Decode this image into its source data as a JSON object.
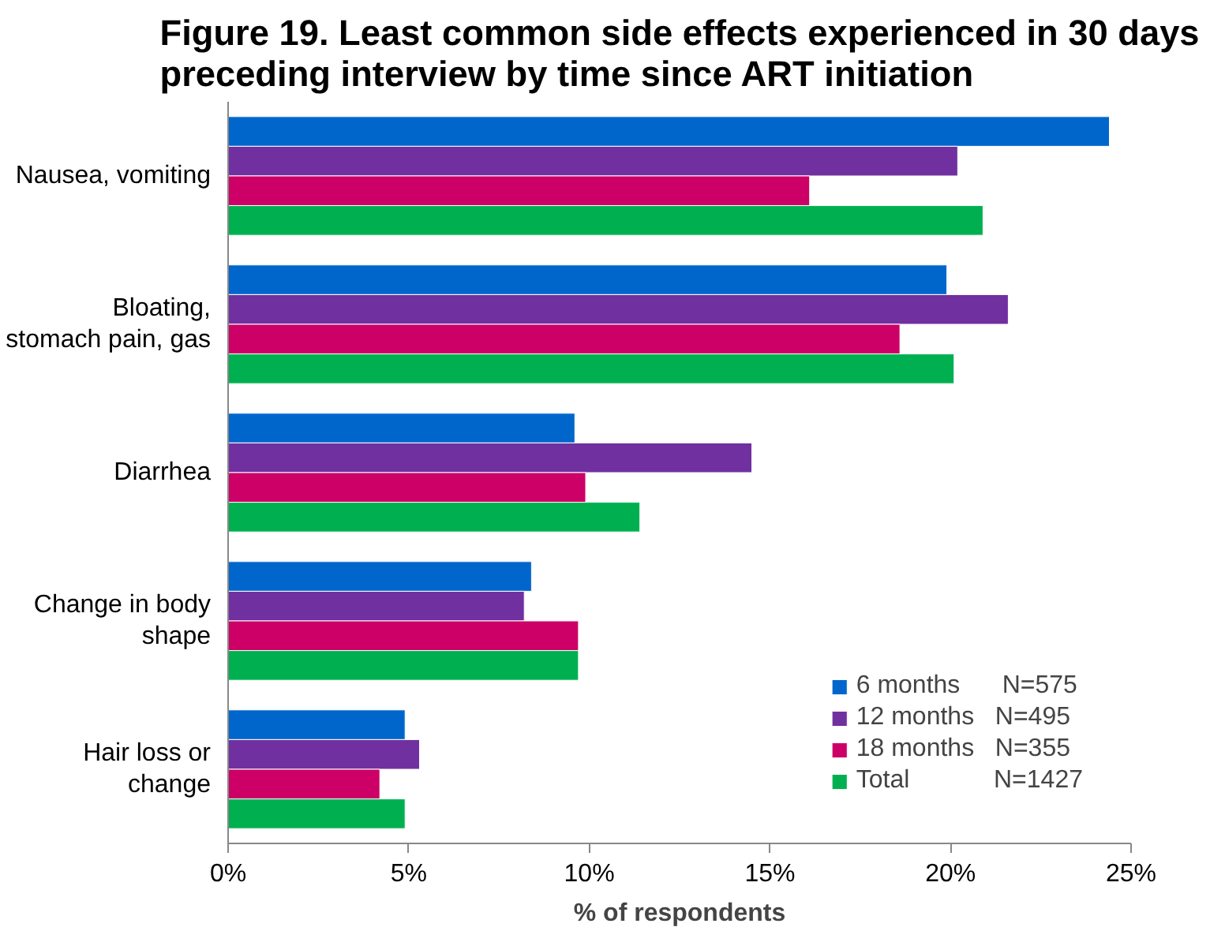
{
  "chart_data": {
    "type": "bar",
    "orientation": "horizontal",
    "title": "Figure 19. Least common side effects experienced in 30 days\npreceding interview by time since ART initiation",
    "xlabel": "% of respondents",
    "categories": [
      "Nausea, vomiting",
      "Bloating,\nstomach pain, gas",
      "Diarrhea",
      "Change in body\nshape",
      "Hair loss or\nchange"
    ],
    "series": [
      {
        "name": "6 months      N=575",
        "color": "#0066cc",
        "values": [
          24.4,
          19.9,
          9.6,
          8.4,
          4.9
        ]
      },
      {
        "name": "12 months   N=495",
        "color": "#7030a0",
        "values": [
          20.2,
          21.6,
          14.5,
          8.2,
          5.3
        ]
      },
      {
        "name": "18 months   N=355",
        "color": "#cc0066",
        "values": [
          16.1,
          18.6,
          9.9,
          9.7,
          4.2
        ]
      },
      {
        "name": "Total            N=1427",
        "color": "#00b050",
        "values": [
          20.9,
          20.1,
          11.4,
          9.7,
          4.9
        ]
      }
    ],
    "xlim": [
      0,
      25
    ],
    "xticks": [
      {
        "value": 0,
        "label": "0%"
      },
      {
        "value": 5,
        "label": "5%"
      },
      {
        "value": 10,
        "label": "10%"
      },
      {
        "value": 15,
        "label": "15%"
      },
      {
        "value": 20,
        "label": "20%"
      },
      {
        "value": 25,
        "label": "25%"
      }
    ],
    "grid": false,
    "legend": "bottom right"
  }
}
